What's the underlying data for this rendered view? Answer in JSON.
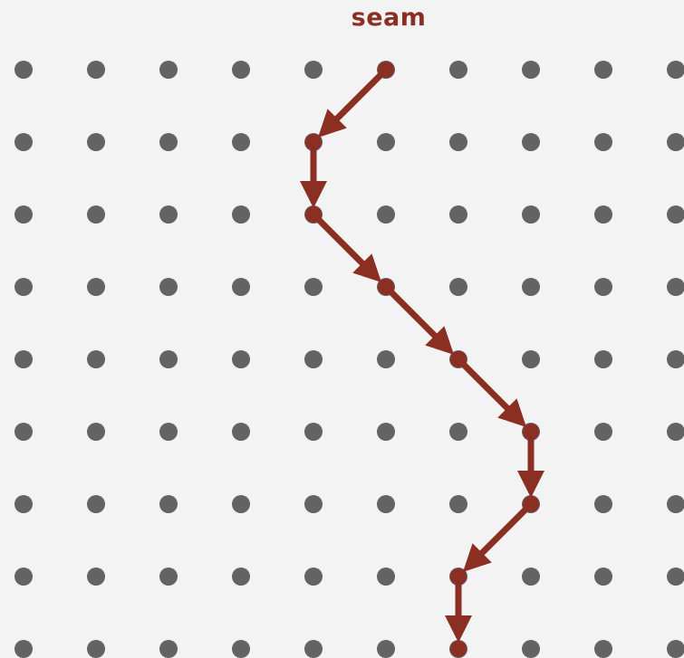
{
  "title": "seam",
  "grid": {
    "rows": 9,
    "cols": 10
  },
  "seam_path": [
    {
      "row": 0,
      "col": 5
    },
    {
      "row": 1,
      "col": 4
    },
    {
      "row": 2,
      "col": 4
    },
    {
      "row": 3,
      "col": 5
    },
    {
      "row": 4,
      "col": 6
    },
    {
      "row": 5,
      "col": 7
    },
    {
      "row": 6,
      "col": 7
    },
    {
      "row": 7,
      "col": 6
    },
    {
      "row": 8,
      "col": 6
    }
  ],
  "colors": {
    "background": "#f3f3f3",
    "node": "#636363",
    "seam": "#8b2f23"
  }
}
